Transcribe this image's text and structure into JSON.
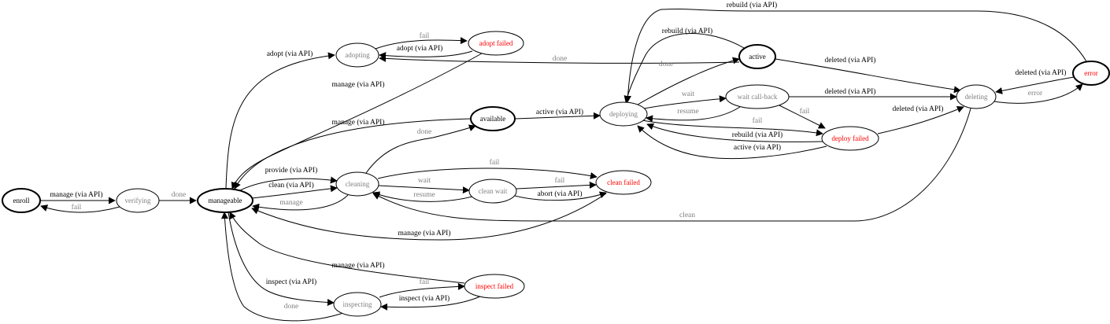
{
  "colors": {
    "edge": "#000000",
    "auto_label": "#808080",
    "api_label": "#000000",
    "failed_text": "#ff0000",
    "transient_text": "#808080",
    "stable_text": "#000000"
  },
  "nodes": [
    {
      "id": "enroll",
      "label": "enroll",
      "stable": true,
      "tone": "stable"
    },
    {
      "id": "verifying",
      "label": "verifying",
      "stable": false,
      "tone": "transient"
    },
    {
      "id": "manageable",
      "label": "manageable",
      "stable": true,
      "tone": "stable"
    },
    {
      "id": "adopting",
      "label": "adopting",
      "stable": false,
      "tone": "transient"
    },
    {
      "id": "adopt_failed",
      "label": "adopt failed",
      "stable": false,
      "tone": "failed"
    },
    {
      "id": "available",
      "label": "available",
      "stable": true,
      "tone": "stable"
    },
    {
      "id": "cleaning",
      "label": "cleaning",
      "stable": false,
      "tone": "transient"
    },
    {
      "id": "clean_wait",
      "label": "clean wait",
      "stable": false,
      "tone": "transient"
    },
    {
      "id": "clean_failed",
      "label": "clean failed",
      "stable": false,
      "tone": "failed"
    },
    {
      "id": "inspecting",
      "label": "inspecting",
      "stable": false,
      "tone": "transient"
    },
    {
      "id": "inspect_failed",
      "label": "inspect failed",
      "stable": false,
      "tone": "failed"
    },
    {
      "id": "deploying",
      "label": "deploying",
      "stable": false,
      "tone": "transient"
    },
    {
      "id": "active",
      "label": "active",
      "stable": true,
      "tone": "stable"
    },
    {
      "id": "wait_callback",
      "label": "wait call-back",
      "stable": false,
      "tone": "transient"
    },
    {
      "id": "deploy_failed",
      "label": "deploy failed",
      "stable": false,
      "tone": "failed"
    },
    {
      "id": "deleting",
      "label": "deleting",
      "stable": false,
      "tone": "transient"
    },
    {
      "id": "error",
      "label": "error",
      "stable": true,
      "tone": "failed"
    }
  ],
  "edges": [
    {
      "from": "enroll",
      "to": "verifying",
      "label": "manage (via API)",
      "tone": "api"
    },
    {
      "from": "verifying",
      "to": "enroll",
      "label": "fail",
      "tone": "auto"
    },
    {
      "from": "verifying",
      "to": "manageable",
      "label": "done",
      "tone": "auto"
    },
    {
      "from": "manageable",
      "to": "adopting",
      "label": "adopt (via API)",
      "tone": "api"
    },
    {
      "from": "adopting",
      "to": "adopt_failed",
      "label": "fail",
      "tone": "auto"
    },
    {
      "from": "adopt_failed",
      "to": "adopting",
      "label": "adopt (via API)",
      "tone": "api"
    },
    {
      "from": "active",
      "to": "adopting",
      "label": "done",
      "tone": "auto"
    },
    {
      "from": "adopt_failed",
      "to": "manageable",
      "label": "manage (via API)",
      "tone": "api"
    },
    {
      "from": "available",
      "to": "manageable",
      "label": "manage (via API)",
      "tone": "api"
    },
    {
      "from": "cleaning",
      "to": "available",
      "label": "done",
      "tone": "auto"
    },
    {
      "from": "available",
      "to": "deploying",
      "label": "active (via API)",
      "tone": "api"
    },
    {
      "from": "manageable",
      "to": "cleaning",
      "label": "provide (via API)",
      "tone": "api"
    },
    {
      "from": "manageable",
      "to": "cleaning",
      "label": "clean (via API)",
      "tone": "api"
    },
    {
      "from": "cleaning",
      "to": "manageable",
      "label": "manage",
      "tone": "auto"
    },
    {
      "from": "cleaning",
      "to": "clean_failed",
      "label": "fail",
      "tone": "auto"
    },
    {
      "from": "cleaning",
      "to": "clean_wait",
      "label": "wait",
      "tone": "auto"
    },
    {
      "from": "clean_wait",
      "to": "cleaning",
      "label": "resume",
      "tone": "auto"
    },
    {
      "from": "clean_wait",
      "to": "clean_failed",
      "label": "fail",
      "tone": "auto"
    },
    {
      "from": "clean_wait",
      "to": "clean_failed",
      "label": "abort (via API)",
      "tone": "api"
    },
    {
      "from": "deleting",
      "to": "cleaning",
      "label": "clean",
      "tone": "auto"
    },
    {
      "from": "clean_failed",
      "to": "manageable",
      "label": "manage (via API)",
      "tone": "api"
    },
    {
      "from": "inspect_failed",
      "to": "manageable",
      "label": "manage (via API)",
      "tone": "api"
    },
    {
      "from": "manageable",
      "to": "inspecting",
      "label": "inspect (via API)",
      "tone": "api"
    },
    {
      "from": "inspecting",
      "to": "manageable",
      "label": "done",
      "tone": "auto"
    },
    {
      "from": "inspecting",
      "to": "inspect_failed",
      "label": "fail",
      "tone": "auto"
    },
    {
      "from": "inspect_failed",
      "to": "inspecting",
      "label": "inspect (via API)",
      "tone": "api"
    },
    {
      "from": "deploying",
      "to": "active",
      "label": "done",
      "tone": "auto"
    },
    {
      "from": "active",
      "to": "deploying",
      "label": "rebuild (via API)",
      "tone": "api"
    },
    {
      "from": "error",
      "to": "deploying",
      "label": "rebuild (via API)",
      "tone": "api"
    },
    {
      "from": "deploying",
      "to": "wait_callback",
      "label": "wait",
      "tone": "auto"
    },
    {
      "from": "wait_callback",
      "to": "deploying",
      "label": "resume",
      "tone": "auto"
    },
    {
      "from": "wait_callback",
      "to": "deleting",
      "label": "deleted (via API)",
      "tone": "api"
    },
    {
      "from": "active",
      "to": "deleting",
      "label": "deleted (via API)",
      "tone": "api"
    },
    {
      "from": "wait_callback",
      "to": "deploy_failed",
      "label": "fail",
      "tone": "auto"
    },
    {
      "from": "deploying",
      "to": "deploy_failed",
      "label": "fail",
      "tone": "auto"
    },
    {
      "from": "deploy_failed",
      "to": "deploying",
      "label": "rebuild (via API)",
      "tone": "api"
    },
    {
      "from": "deploy_failed",
      "to": "deploying",
      "label": "active (via API)",
      "tone": "api"
    },
    {
      "from": "deploy_failed",
      "to": "deleting",
      "label": "deleted (via API)",
      "tone": "api"
    },
    {
      "from": "error",
      "to": "deleting",
      "label": "deleted (via API)",
      "tone": "api"
    },
    {
      "from": "deleting",
      "to": "error",
      "label": "error",
      "tone": "auto"
    }
  ]
}
